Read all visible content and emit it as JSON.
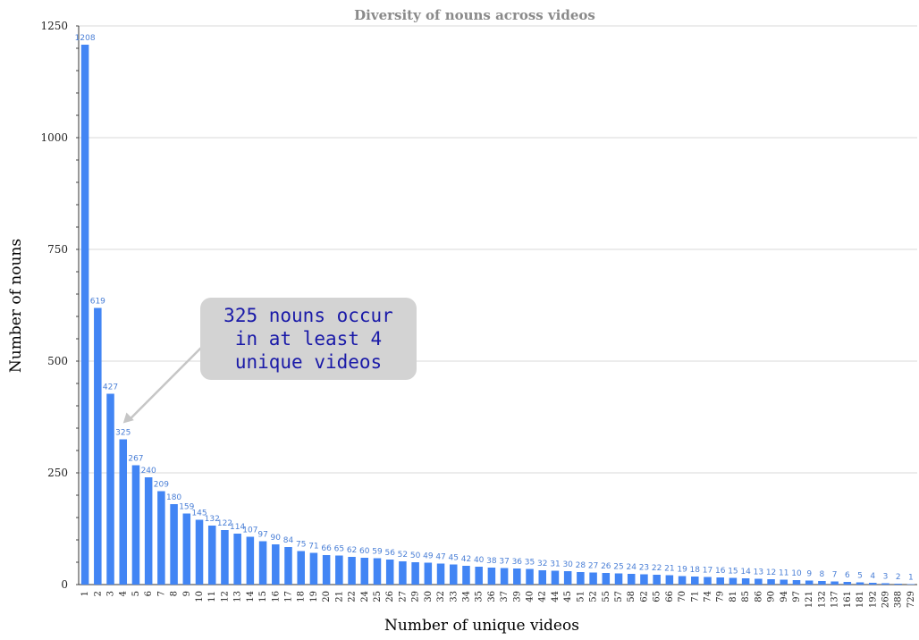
{
  "chart_data": {
    "type": "bar",
    "title": "Diversity of nouns across videos",
    "xlabel": "Number of unique videos",
    "ylabel": "Number of nouns",
    "ylim": [
      0,
      1250
    ],
    "yticks": [
      0,
      250,
      500,
      750,
      1000,
      1250
    ],
    "grid": true,
    "legend": "none",
    "bar_color": "#4285f4",
    "label_color": "#4a7fd6",
    "categories": [
      "1",
      "2",
      "3",
      "4",
      "5",
      "6",
      "7",
      "8",
      "9",
      "10",
      "11",
      "12",
      "13",
      "14",
      "15",
      "16",
      "17",
      "18",
      "19",
      "20",
      "21",
      "22",
      "24",
      "25",
      "26",
      "27",
      "29",
      "30",
      "32",
      "33",
      "34",
      "35",
      "36",
      "37",
      "39",
      "40",
      "42",
      "44",
      "45",
      "51",
      "52",
      "55",
      "57",
      "58",
      "62",
      "65",
      "66",
      "70",
      "71",
      "74",
      "79",
      "81",
      "85",
      "86",
      "90",
      "94",
      "97",
      "121",
      "132",
      "137",
      "161",
      "181",
      "192",
      "269",
      "388",
      "729"
    ],
    "values": [
      1208,
      619,
      427,
      325,
      267,
      240,
      209,
      180,
      159,
      145,
      132,
      122,
      114,
      107,
      97,
      90,
      84,
      75,
      71,
      66,
      65,
      62,
      60,
      59,
      56,
      52,
      50,
      49,
      47,
      45,
      42,
      40,
      38,
      37,
      36,
      35,
      32,
      31,
      30,
      28,
      27,
      26,
      25,
      24,
      23,
      22,
      21,
      19,
      18,
      17,
      16,
      15,
      14,
      13,
      12,
      11,
      10,
      9,
      8,
      7,
      6,
      5,
      4,
      3,
      2,
      1
    ],
    "annotation": {
      "lines": [
        "325 nouns occur",
        "in at least 4",
        "unique videos"
      ],
      "points_to_category": "4"
    }
  }
}
